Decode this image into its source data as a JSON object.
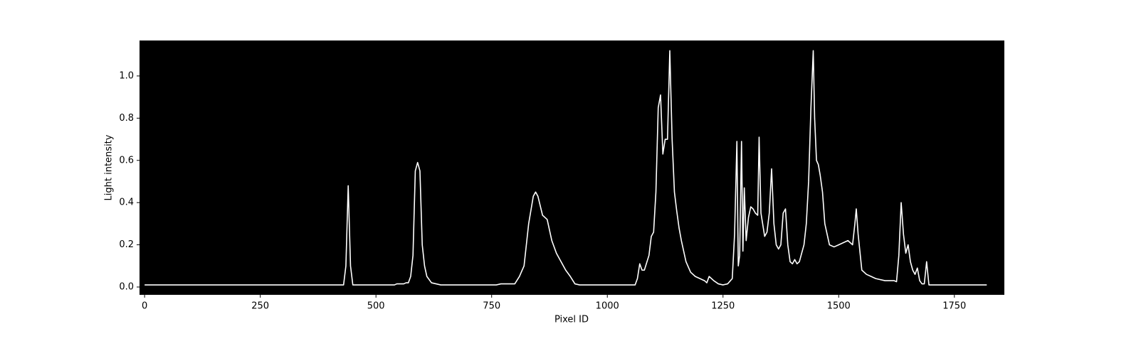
{
  "chart_data": {
    "type": "line",
    "xlabel": "Pixel ID",
    "ylabel": "Light intensity",
    "background": "#000000",
    "x": [
      0,
      430,
      435,
      440,
      445,
      450,
      460,
      540,
      545,
      560,
      565,
      570,
      575,
      580,
      585,
      590,
      595,
      600,
      605,
      610,
      620,
      640,
      660,
      760,
      770,
      800,
      810,
      820,
      830,
      840,
      845,
      850,
      860,
      870,
      880,
      890,
      900,
      910,
      920,
      930,
      940,
      1060,
      1065,
      1070,
      1075,
      1080,
      1090,
      1095,
      1100,
      1105,
      1110,
      1115,
      1120,
      1125,
      1130,
      1135,
      1140,
      1145,
      1150,
      1155,
      1160,
      1170,
      1180,
      1190,
      1200,
      1210,
      1215,
      1220,
      1230,
      1240,
      1250,
      1260,
      1270,
      1275,
      1280,
      1283,
      1286,
      1290,
      1293,
      1296,
      1300,
      1305,
      1310,
      1315,
      1320,
      1325,
      1328,
      1332,
      1340,
      1345,
      1350,
      1355,
      1360,
      1365,
      1370,
      1375,
      1380,
      1385,
      1390,
      1395,
      1400,
      1405,
      1410,
      1415,
      1420,
      1425,
      1430,
      1435,
      1440,
      1445,
      1448,
      1452,
      1456,
      1460,
      1465,
      1470,
      1475,
      1480,
      1490,
      1500,
      1510,
      1520,
      1525,
      1530,
      1535,
      1538,
      1542,
      1550,
      1560,
      1570,
      1580,
      1600,
      1620,
      1625,
      1630,
      1635,
      1640,
      1645,
      1650,
      1655,
      1660,
      1665,
      1670,
      1675,
      1680,
      1685,
      1690,
      1695,
      1700,
      1750,
      1820
    ],
    "series": [
      {
        "name": "intensity",
        "color": "#ffffff",
        "values": [
          0.01,
          0.01,
          0.1,
          0.48,
          0.1,
          0.01,
          0.01,
          0.01,
          0.015,
          0.015,
          0.02,
          0.02,
          0.05,
          0.15,
          0.55,
          0.59,
          0.55,
          0.2,
          0.1,
          0.05,
          0.02,
          0.01,
          0.01,
          0.01,
          0.015,
          0.015,
          0.05,
          0.1,
          0.3,
          0.43,
          0.45,
          0.43,
          0.34,
          0.32,
          0.22,
          0.16,
          0.12,
          0.08,
          0.05,
          0.015,
          0.01,
          0.01,
          0.04,
          0.11,
          0.08,
          0.08,
          0.15,
          0.24,
          0.26,
          0.45,
          0.85,
          0.91,
          0.63,
          0.7,
          0.7,
          1.12,
          0.7,
          0.45,
          0.36,
          0.28,
          0.22,
          0.12,
          0.07,
          0.05,
          0.04,
          0.03,
          0.02,
          0.05,
          0.03,
          0.015,
          0.01,
          0.015,
          0.04,
          0.25,
          0.69,
          0.1,
          0.15,
          0.69,
          0.17,
          0.47,
          0.22,
          0.33,
          0.38,
          0.37,
          0.35,
          0.34,
          0.71,
          0.35,
          0.24,
          0.26,
          0.35,
          0.56,
          0.3,
          0.2,
          0.18,
          0.2,
          0.35,
          0.37,
          0.2,
          0.12,
          0.11,
          0.13,
          0.11,
          0.12,
          0.16,
          0.2,
          0.3,
          0.5,
          0.85,
          1.12,
          0.8,
          0.6,
          0.58,
          0.53,
          0.45,
          0.3,
          0.25,
          0.2,
          0.19,
          0.2,
          0.21,
          0.22,
          0.21,
          0.2,
          0.3,
          0.37,
          0.25,
          0.08,
          0.06,
          0.05,
          0.04,
          0.03,
          0.03,
          0.025,
          0.15,
          0.4,
          0.25,
          0.16,
          0.2,
          0.12,
          0.08,
          0.06,
          0.09,
          0.03,
          0.015,
          0.015,
          0.12,
          0.01,
          0.01,
          0.01,
          0.01
        ]
      }
    ],
    "xlim": [
      -11,
      1858
    ],
    "ylim": [
      -0.037,
      1.168
    ],
    "xticks": [
      0,
      250,
      500,
      750,
      1000,
      1250,
      1500,
      1750
    ],
    "yticks": [
      {
        "value": 0,
        "label": "0.0"
      },
      {
        "value": 0.2,
        "label": "0.2"
      },
      {
        "value": 0.4,
        "label": "0.4"
      },
      {
        "value": 0.6,
        "label": "0.6"
      },
      {
        "value": 0.8,
        "label": "0.8"
      },
      {
        "value": 1.0,
        "label": "1.0"
      }
    ]
  }
}
